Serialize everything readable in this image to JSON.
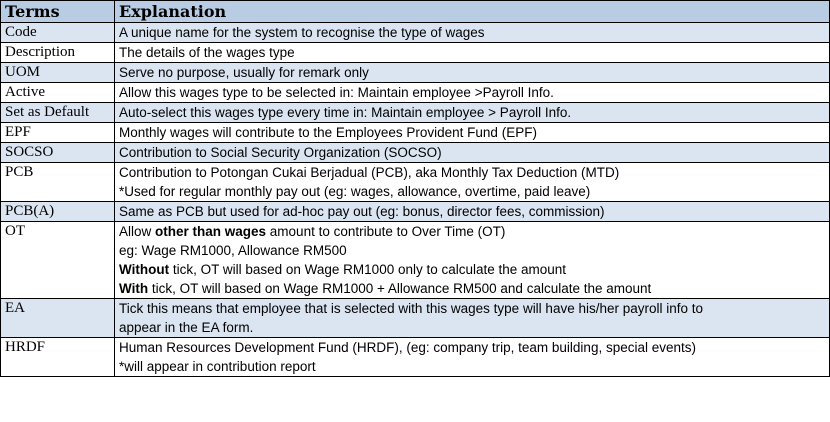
{
  "headers": {
    "terms": "Terms",
    "explanation": "Explanation"
  },
  "rows": [
    {
      "term": "Code",
      "lines": [
        "A unique name for the system to recognise the type of wages"
      ]
    },
    {
      "term": "Description",
      "lines": [
        "The details of the wages type"
      ]
    },
    {
      "term": "UOM",
      "lines": [
        "Serve no purpose, usually for remark only"
      ]
    },
    {
      "term": "Active",
      "lines": [
        "Allow this wages type to be selected in: Maintain employee >Payroll Info."
      ]
    },
    {
      "term": "Set as Default",
      "lines": [
        "Auto-select this wages type every time in: Maintain employee > Payroll Info."
      ]
    },
    {
      "term": "EPF",
      "lines": [
        "Monthly wages will contribute to the Employees Provident Fund (EPF)"
      ]
    },
    {
      "term": "SOCSO",
      "lines": [
        "Contribution to Social Security Organization (SOCSO)"
      ]
    },
    {
      "term": "PCB",
      "lines": [
        "Contribution to Potongan Cukai Berjadual (PCB), aka Monthly Tax Deduction (MTD)",
        "*Used for regular monthly pay out (eg: wages, allowance, overtime, paid leave)"
      ]
    },
    {
      "term": "PCB(A)",
      "lines": [
        "Same as PCB but used for ad-hoc pay out (eg: bonus, director fees, commission)"
      ]
    },
    {
      "term": "OT",
      "ot": {
        "l1_pre": "Allow ",
        "l1_bold": "other than wages",
        "l1_post": " amount to contribute to Over Time (OT)",
        "l2": "eg: Wage RM1000, Allowance RM500",
        "l3_bold": "Without",
        "l3_post": " tick, OT will based on Wage RM1000 only to calculate the amount",
        "l4_bold": "With",
        "l4_post": " tick, OT will based on Wage RM1000 + Allowance RM500 and calculate the amount"
      }
    },
    {
      "term": "EA",
      "lines": [
        "Tick this means that employee that is selected with this wages type will have his/her payroll info to",
        "appear in the EA form."
      ]
    },
    {
      "term": "HRDF",
      "lines": [
        "Human Resources Development Fund (HRDF), (eg: company trip, team building, special events)",
        "*will appear in contribution report"
      ]
    }
  ]
}
